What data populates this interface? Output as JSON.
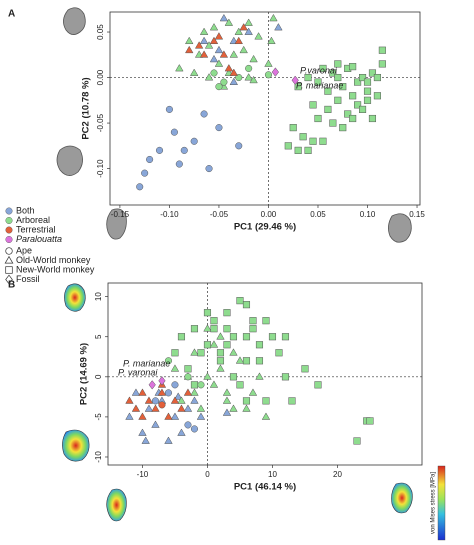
{
  "legend": {
    "colors": [
      {
        "name": "Both",
        "color": "#88a6d8"
      },
      {
        "name": "Arboreal",
        "color": "#8edc8e"
      },
      {
        "name": "Terrestrial",
        "color": "#e2603a"
      },
      {
        "name": "Paralouatta",
        "color": "#dc74dc"
      }
    ],
    "shapes": [
      {
        "name": "Ape",
        "marker": "circle"
      },
      {
        "name": "Old-World monkey",
        "marker": "triangle"
      },
      {
        "name": "New-World monkey",
        "marker": "square"
      },
      {
        "name": "Fossil",
        "marker": "diamond"
      }
    ]
  },
  "colorbar_label": "von Mises stress [MPa]",
  "chart_data": [
    {
      "type": "scatter",
      "panel": "A",
      "xlabel": "PC1 (29.46 %)",
      "ylabel": "PC2 (10.78 %)",
      "xlim": [
        -0.16,
        0.153
      ],
      "ylim": [
        -0.14,
        0.072
      ],
      "xticks": [
        -0.15,
        {
          "value": -0.1,
          "label": "-0.10"
        },
        -0.05,
        {
          "value": 0,
          "label": "0.00"
        },
        0.05,
        {
          "value": 0.1,
          "label": "0.10"
        },
        0.15
      ],
      "yticks": [
        {
          "value": -0.1,
          "label": "-0.10"
        },
        -0.05,
        {
          "value": 0,
          "label": "0.00"
        },
        0.05
      ],
      "annotations": [
        "P.varonai",
        "P. marianae"
      ],
      "series": [
        {
          "color_group": "Both",
          "shape_group": "Ape",
          "x": [
            -0.13,
            -0.125,
            -0.12,
            -0.11,
            -0.1,
            -0.095,
            -0.09,
            -0.085,
            -0.075,
            -0.065,
            -0.06,
            -0.05,
            -0.03
          ],
          "y": [
            -0.12,
            -0.105,
            -0.09,
            -0.08,
            -0.035,
            -0.06,
            -0.095,
            -0.08,
            -0.07,
            -0.04,
            -0.1,
            -0.055,
            -0.075
          ]
        },
        {
          "color_group": "Both",
          "shape_group": "Old-World monkey",
          "x": [
            -0.065,
            -0.05,
            -0.035,
            -0.045,
            -0.02,
            0.01,
            -0.035,
            -0.055
          ],
          "y": [
            0.04,
            0.03,
            0.04,
            0.065,
            0.05,
            0.055,
            -0.005,
            0.02
          ]
        },
        {
          "color_group": "Arboreal",
          "shape_group": "Old-World monkey",
          "x": [
            -0.09,
            -0.08,
            -0.07,
            -0.06,
            -0.055,
            -0.05,
            -0.04,
            -0.03,
            -0.025,
            -0.02,
            -0.015,
            -0.01,
            0,
            0.005,
            -0.045,
            -0.035,
            -0.06,
            -0.075,
            -0.065,
            -0.02,
            -0.04,
            0.003,
            -0.015
          ],
          "y": [
            0.01,
            0.04,
            0.025,
            0,
            0.055,
            0.015,
            0.06,
            0.05,
            0.03,
            0,
            0.02,
            0.045,
            0.015,
            0.065,
            -0.01,
            0.025,
            0.035,
            0.005,
            0.05,
            0.06,
            0.005,
            0.04,
            -0.003
          ]
        },
        {
          "color_group": "Arboreal",
          "shape_group": "New-World monkey",
          "x": [
            0.03,
            0.04,
            0.05,
            0.055,
            0.06,
            0.065,
            0.07,
            0.075,
            0.08,
            0.085,
            0.09,
            0.095,
            0.1,
            0.105,
            0.11,
            0.115,
            0.045,
            0.06,
            0.07,
            0.08,
            0.09,
            0.1,
            0.11,
            0.05,
            0.065,
            0.075,
            0.085,
            0.095,
            0.105,
            0.025,
            0.035,
            0.045,
            0.02,
            0.03,
            0.04,
            0.055,
            0.115,
            0.1,
            0.085,
            0.07
          ],
          "y": [
            -0.01,
            0,
            -0.005,
            0.01,
            -0.015,
            0.005,
            0,
            -0.01,
            0.01,
            -0.02,
            -0.005,
            0,
            -0.015,
            0.005,
            0,
            0.03,
            -0.03,
            -0.035,
            -0.025,
            -0.04,
            -0.03,
            -0.025,
            -0.02,
            -0.045,
            -0.05,
            -0.055,
            -0.045,
            -0.035,
            -0.045,
            -0.055,
            -0.065,
            -0.07,
            -0.075,
            -0.08,
            -0.08,
            -0.07,
            0.015,
            -0.005,
            0.012,
            0.015
          ]
        },
        {
          "color_group": "Arboreal",
          "shape_group": "Ape",
          "x": [
            -0.055,
            -0.045,
            -0.03,
            -0.02,
            -0.05,
            0
          ],
          "y": [
            0.005,
            -0.005,
            0,
            0.01,
            -0.01,
            0.003
          ]
        },
        {
          "color_group": "Terrestrial",
          "shape_group": "Old-World monkey",
          "x": [
            -0.08,
            -0.07,
            -0.065,
            -0.05,
            -0.045,
            -0.03,
            -0.04,
            -0.035,
            -0.055,
            -0.025
          ],
          "y": [
            0.03,
            0.035,
            0.025,
            0.045,
            0.025,
            0.04,
            0.01,
            0.005,
            0.04,
            0.055
          ]
        },
        {
          "color_group": "Paralouatta",
          "shape_group": "Fossil",
          "x": [
            0.007,
            0.027
          ],
          "y": [
            0.006,
            -0.003
          ]
        }
      ]
    },
    {
      "type": "scatter",
      "panel": "B",
      "xlabel": "PC1 (46.14 %)",
      "ylabel": "PC2 (14.69 %)",
      "xlim": [
        -15.3,
        33
      ],
      "ylim": [
        -11,
        11.7
      ],
      "xticks": [
        -10,
        0,
        10,
        20
      ],
      "yticks": [
        -10,
        -5,
        0,
        5,
        10
      ],
      "annotations": [
        "P. marianae",
        "P. varonai"
      ],
      "series": [
        {
          "color_group": "Both",
          "shape_group": "Ape",
          "x": [
            -5,
            -3,
            -6,
            -8,
            -2
          ],
          "y": [
            -1,
            -6,
            -2,
            -3,
            -6.5
          ]
        },
        {
          "color_group": "Both",
          "shape_group": "Old-World monkey",
          "x": [
            -12,
            -10,
            -9,
            -8,
            -7,
            -6,
            -5,
            -4,
            -3,
            -2,
            -1,
            -11,
            -9.5,
            -7.5,
            -4.5,
            3
          ],
          "y": [
            -5,
            -7,
            -4,
            -6,
            -3,
            -8,
            -5,
            -7,
            -4,
            -3,
            -5,
            -2,
            -8,
            -2,
            -2.5,
            -4.5
          ]
        },
        {
          "color_group": "Arboreal",
          "shape_group": "Old-World monkey",
          "x": [
            -4,
            -2,
            0,
            2,
            4,
            -1,
            1,
            3,
            5,
            -3,
            6,
            8,
            -5,
            2,
            9,
            3,
            1,
            -2,
            4,
            7,
            0
          ],
          "y": [
            -3,
            -2,
            0,
            1,
            3,
            -4,
            -1,
            -3,
            2,
            0,
            -4,
            0,
            1,
            5,
            -5,
            -2,
            4,
            3,
            -4,
            -2,
            6
          ]
        },
        {
          "color_group": "Arboreal",
          "shape_group": "New-World monkey",
          "x": [
            -4,
            -2,
            0,
            1,
            2,
            3,
            4,
            5,
            6,
            7,
            8,
            9,
            10,
            12,
            15,
            17,
            13,
            12,
            6,
            24.5,
            25,
            23,
            -3,
            -1,
            2,
            4,
            6,
            8,
            -5,
            1,
            3,
            5,
            0,
            7,
            9,
            11,
            -2,
            3,
            6
          ],
          "y": [
            5,
            6,
            4,
            7,
            3,
            8,
            5,
            9.5,
            2,
            6,
            4,
            7,
            5,
            0,
            1,
            -1,
            -3,
            5,
            9,
            -5.5,
            -5.5,
            -8,
            1,
            3,
            2,
            0,
            5,
            2,
            3,
            6,
            4,
            -1,
            8,
            7,
            -3,
            3,
            -1,
            6,
            -3
          ]
        },
        {
          "color_group": "Arboreal",
          "shape_group": "Ape",
          "x": [
            -3,
            -1,
            -6
          ],
          "y": [
            0,
            -1,
            2
          ]
        },
        {
          "color_group": "Terrestrial",
          "shape_group": "Old-World monkey",
          "x": [
            -12,
            -11,
            -10,
            -9,
            -8,
            -7,
            -6,
            -5,
            -4,
            -10,
            -7,
            -3
          ],
          "y": [
            -3,
            -4,
            -2,
            -3,
            -4,
            -2,
            -5,
            -3,
            -4,
            -5,
            -1,
            -2
          ]
        },
        {
          "color_group": "Terrestrial",
          "shape_group": "Ape",
          "x": [
            -7
          ],
          "y": [
            -3.5
          ]
        },
        {
          "color_group": "Paralouatta",
          "shape_group": "Fossil",
          "x": [
            -7,
            -8.5
          ],
          "y": [
            -0.5,
            -1
          ]
        }
      ]
    }
  ]
}
